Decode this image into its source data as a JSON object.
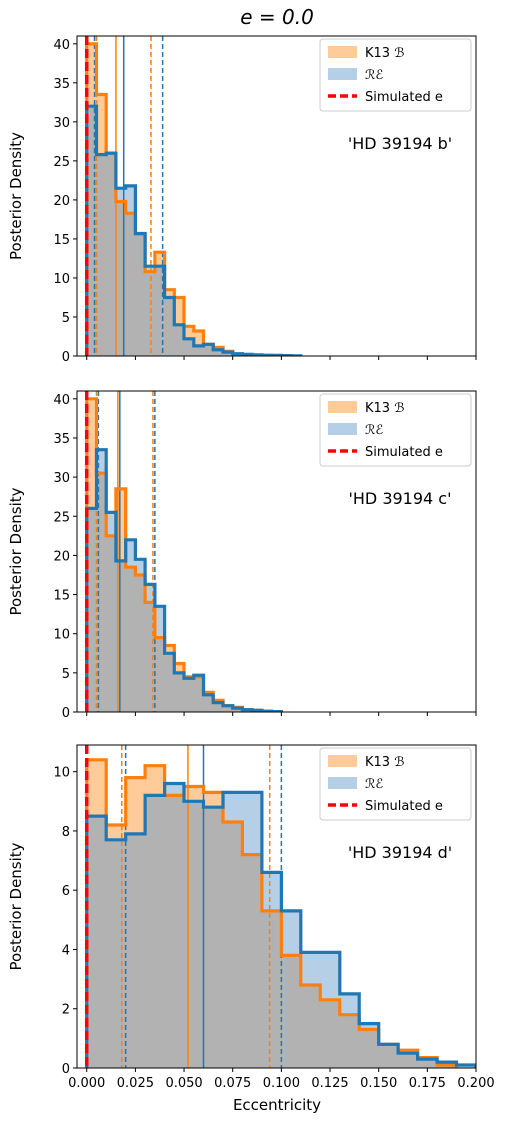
{
  "figure": {
    "title": "e = 0.0",
    "xlabel": "Eccentricity",
    "ylabel": "Posterior Density"
  },
  "colors": {
    "orange": "#ff7f0e",
    "blue": "#1f77b4",
    "orange_fill": "#ffcc99",
    "blue_fill": "#b5d0e6",
    "overlap": "#b2b2b2",
    "simulated": "#ff0000"
  },
  "legend": [
    {
      "label": "K13 ℬ",
      "kind": "patch",
      "color": "#ffcc99"
    },
    {
      "label": "ℛℰ",
      "kind": "patch",
      "color": "#b5d0e6"
    },
    {
      "label": "Simulated e",
      "kind": "dashed-line",
      "color": "#ff0000"
    }
  ],
  "chart_data": [
    {
      "type": "histogram",
      "annotation": "'HD 39194 b'",
      "xlim": [
        -0.005,
        0.2
      ],
      "ylim": [
        0,
        41
      ],
      "yticks": [
        0,
        5,
        10,
        15,
        20,
        25,
        30,
        35,
        40
      ],
      "xticks": [
        0.0,
        0.025,
        0.05,
        0.075,
        0.1,
        0.125,
        0.15,
        0.175,
        0.2
      ],
      "simulated_e": 0.0,
      "series": [
        {
          "name": "K13 ℬ",
          "color": "#ff7f0e",
          "bin_edges": [
            0.0,
            0.005,
            0.01,
            0.015,
            0.02,
            0.025,
            0.03,
            0.035,
            0.04,
            0.045,
            0.05,
            0.055,
            0.06,
            0.065,
            0.07,
            0.075,
            0.08,
            0.085,
            0.09,
            0.095
          ],
          "densities": [
            40,
            33.5,
            26,
            19.8,
            18.3,
            15.6,
            10.8,
            13.3,
            8.5,
            7.5,
            3.8,
            3.2,
            1.5,
            1.1,
            0.6,
            0.2,
            0.1,
            0.05,
            0.02
          ],
          "median": 0.015,
          "interval": [
            0.005,
            0.033
          ]
        },
        {
          "name": "ℛℰ",
          "color": "#1f77b4",
          "bin_edges": [
            0.0,
            0.005,
            0.01,
            0.015,
            0.02,
            0.025,
            0.03,
            0.035,
            0.04,
            0.045,
            0.05,
            0.055,
            0.06,
            0.065,
            0.07,
            0.075,
            0.08,
            0.085,
            0.09,
            0.095,
            0.1,
            0.105,
            0.11
          ],
          "densities": [
            32,
            25.8,
            26,
            21.5,
            21.8,
            15.7,
            11.5,
            11.5,
            7.5,
            4,
            2.2,
            1.3,
            1.5,
            0.8,
            0.5,
            0.3,
            0.2,
            0.15,
            0.1,
            0.08,
            0.05,
            0.02
          ],
          "median": 0.019,
          "interval": [
            0.004,
            0.039
          ]
        }
      ]
    },
    {
      "type": "histogram",
      "annotation": "'HD 39194 c'",
      "xlim": [
        -0.005,
        0.2
      ],
      "ylim": [
        0,
        41
      ],
      "yticks": [
        0,
        5,
        10,
        15,
        20,
        25,
        30,
        35,
        40
      ],
      "xticks": [
        0.0,
        0.025,
        0.05,
        0.075,
        0.1,
        0.125,
        0.15,
        0.175,
        0.2
      ],
      "simulated_e": 0.0,
      "series": [
        {
          "name": "K13 ℬ",
          "color": "#ff7f0e",
          "bin_edges": [
            0.0,
            0.005,
            0.01,
            0.015,
            0.02,
            0.025,
            0.03,
            0.035,
            0.04,
            0.045,
            0.05,
            0.055,
            0.06,
            0.065,
            0.07,
            0.075,
            0.08,
            0.085,
            0.09,
            0.095,
            0.1
          ],
          "densities": [
            40,
            30.5,
            22.5,
            28.5,
            18.5,
            17.5,
            14,
            9.5,
            8.5,
            6.2,
            4.5,
            4.5,
            2.5,
            1.5,
            0.8,
            0.6,
            0.3,
            0.2,
            0.1,
            0.05
          ],
          "median": 0.016,
          "interval": [
            0.005,
            0.034
          ]
        },
        {
          "name": "ℛℰ",
          "color": "#1f77b4",
          "bin_edges": [
            0.0,
            0.005,
            0.01,
            0.015,
            0.02,
            0.025,
            0.03,
            0.035,
            0.04,
            0.045,
            0.05,
            0.055,
            0.06,
            0.065,
            0.07,
            0.075,
            0.08,
            0.085,
            0.09,
            0.095,
            0.1
          ],
          "densities": [
            26,
            33.5,
            25.5,
            19.3,
            22,
            19.5,
            16.3,
            13.5,
            7.5,
            5,
            4.3,
            4.7,
            2.2,
            1.2,
            0.8,
            0.5,
            0.3,
            0.2,
            0.1,
            0.05
          ],
          "median": 0.017,
          "interval": [
            0.006,
            0.035
          ]
        }
      ]
    },
    {
      "type": "histogram",
      "annotation": "'HD 39194 d'",
      "xlim": [
        -0.005,
        0.2
      ],
      "ylim": [
        0,
        10.9
      ],
      "yticks": [
        0,
        2,
        4,
        6,
        8,
        10
      ],
      "xticks": [
        0.0,
        0.025,
        0.05,
        0.075,
        0.1,
        0.125,
        0.15,
        0.175,
        0.2
      ],
      "xtick_labels": [
        "0.000",
        "0.025",
        "0.050",
        "0.075",
        "0.100",
        "0.125",
        "0.150",
        "0.175",
        "0.200"
      ],
      "simulated_e": 0.0,
      "series": [
        {
          "name": "K13 ℬ",
          "color": "#ff7f0e",
          "bin_edges": [
            0.0,
            0.01,
            0.02,
            0.03,
            0.04,
            0.05,
            0.06,
            0.07,
            0.08,
            0.09,
            0.1,
            0.11,
            0.12,
            0.13,
            0.14,
            0.15,
            0.16,
            0.17,
            0.18,
            0.19
          ],
          "densities": [
            10.4,
            8.2,
            9.8,
            10.2,
            9.2,
            9.5,
            9.3,
            8.3,
            7.2,
            5.3,
            3.8,
            2.8,
            2.3,
            1.8,
            1.3,
            0.8,
            0.6,
            0.35,
            0.1
          ],
          "median": 0.052,
          "interval": [
            0.018,
            0.094
          ]
        },
        {
          "name": "ℛℰ",
          "color": "#1f77b4",
          "bin_edges": [
            0.0,
            0.01,
            0.02,
            0.03,
            0.04,
            0.05,
            0.06,
            0.07,
            0.08,
            0.09,
            0.1,
            0.11,
            0.12,
            0.13,
            0.14,
            0.15,
            0.16,
            0.17,
            0.18,
            0.19,
            0.2
          ],
          "densities": [
            8.5,
            7.7,
            7.9,
            9.2,
            9.6,
            9.0,
            8.8,
            9.3,
            9.3,
            6.6,
            5.3,
            3.9,
            3.9,
            2.5,
            1.5,
            0.8,
            0.5,
            0.3,
            0.2,
            0.1
          ],
          "median": 0.06,
          "interval": [
            0.02,
            0.1
          ]
        }
      ]
    }
  ]
}
